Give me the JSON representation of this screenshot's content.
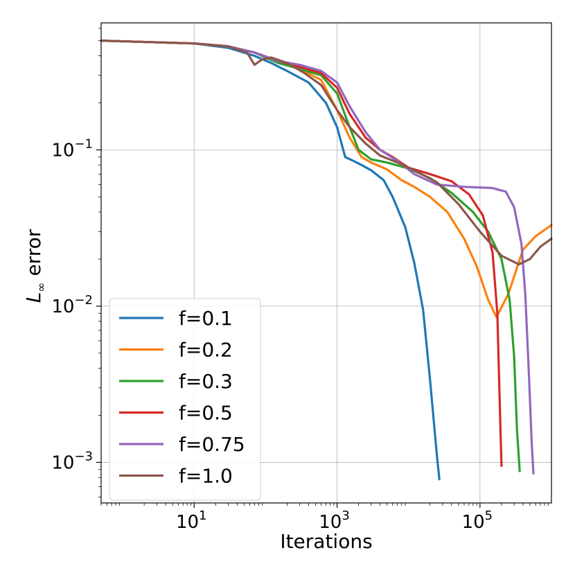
{
  "chart_data": {
    "type": "line",
    "title": "",
    "xlabel": "Iterations",
    "ylabel_main": "L",
    "ylabel_sub": "∞",
    "ylabel_rest": " error",
    "xscale": "log",
    "yscale": "log",
    "xlim": [
      0.5,
      1000000
    ],
    "ylim": [
      0.00055,
      0.65
    ],
    "grid": true,
    "legend_position": "lower-left",
    "x_ticks": [
      {
        "value": 10,
        "base": "10",
        "exp": "1"
      },
      {
        "value": 1000,
        "base": "10",
        "exp": "3"
      },
      {
        "value": 100000,
        "base": "10",
        "exp": "5"
      }
    ],
    "y_ticks": [
      {
        "value": 0.1,
        "base": "10",
        "exp": "−1"
      },
      {
        "value": 0.01,
        "base": "10",
        "exp": "−2"
      },
      {
        "value": 0.001,
        "base": "10",
        "exp": "−3"
      }
    ],
    "series": [
      {
        "name": "f=0.1",
        "color": "#1f77b4",
        "x": [
          0.5,
          10,
          30,
          70,
          120,
          200,
          400,
          700,
          1000,
          1300,
          1700,
          2200,
          3000,
          4500,
          6000,
          9000,
          12000,
          16000,
          20000,
          25000,
          27000
        ],
        "y": [
          0.5,
          0.48,
          0.45,
          0.4,
          0.36,
          0.32,
          0.27,
          0.2,
          0.14,
          0.09,
          0.085,
          0.08,
          0.074,
          0.064,
          0.05,
          0.032,
          0.019,
          0.0095,
          0.0034,
          0.0011,
          0.00078
        ]
      },
      {
        "name": "f=0.2",
        "color": "#ff7f0e",
        "x": [
          0.5,
          10,
          30,
          70,
          150,
          300,
          600,
          1000,
          1500,
          2200,
          3000,
          5000,
          8000,
          12000,
          20000,
          35000,
          60000,
          90000,
          130000,
          170000,
          250000,
          400000,
          600000,
          1000000
        ],
        "y": [
          0.5,
          0.48,
          0.46,
          0.42,
          0.37,
          0.33,
          0.28,
          0.18,
          0.12,
          0.09,
          0.083,
          0.075,
          0.064,
          0.058,
          0.05,
          0.04,
          0.027,
          0.018,
          0.011,
          0.0085,
          0.012,
          0.023,
          0.028,
          0.033
        ]
      },
      {
        "name": "f=0.3",
        "color": "#2ca02c",
        "x": [
          0.5,
          10,
          30,
          70,
          150,
          300,
          600,
          1000,
          1500,
          2000,
          3000,
          5000,
          10000,
          20000,
          40000,
          80000,
          130000,
          200000,
          260000,
          300000,
          330000,
          360000
        ],
        "y": [
          0.5,
          0.48,
          0.46,
          0.42,
          0.36,
          0.33,
          0.3,
          0.23,
          0.14,
          0.1,
          0.087,
          0.083,
          0.076,
          0.066,
          0.053,
          0.04,
          0.03,
          0.02,
          0.011,
          0.0048,
          0.0016,
          0.00088
        ]
      },
      {
        "name": "f=0.5",
        "color": "#d62728",
        "x": [
          0.5,
          10,
          30,
          70,
          150,
          300,
          600,
          1000,
          1500,
          2500,
          4000,
          6000,
          10000,
          20000,
          40000,
          70000,
          110000,
          150000,
          175000,
          190000,
          200000
        ],
        "y": [
          0.5,
          0.48,
          0.46,
          0.42,
          0.37,
          0.34,
          0.31,
          0.25,
          0.17,
          0.12,
          0.1,
          0.09,
          0.077,
          0.07,
          0.063,
          0.052,
          0.038,
          0.022,
          0.009,
          0.0022,
          0.00095
        ]
      },
      {
        "name": "f=0.75",
        "color": "#9467bd",
        "x": [
          0.5,
          10,
          30,
          70,
          150,
          300,
          600,
          1000,
          1500,
          2500,
          4000,
          7000,
          12000,
          25000,
          60000,
          150000,
          230000,
          300000,
          380000,
          430000,
          480000,
          530000,
          560000
        ],
        "y": [
          0.5,
          0.48,
          0.46,
          0.42,
          0.37,
          0.35,
          0.32,
          0.27,
          0.19,
          0.13,
          0.1,
          0.085,
          0.07,
          0.06,
          0.058,
          0.057,
          0.054,
          0.043,
          0.025,
          0.012,
          0.004,
          0.0013,
          0.00085
        ]
      },
      {
        "name": "f=1.0",
        "color": "#8c564b",
        "x": [
          0.5,
          10,
          30,
          55,
          70,
          90,
          120,
          200,
          350,
          600,
          1000,
          1500,
          2500,
          4000,
          7000,
          12000,
          25000,
          50000,
          100000,
          200000,
          350000,
          500000,
          700000,
          1000000
        ],
        "y": [
          0.5,
          0.48,
          0.46,
          0.42,
          0.35,
          0.38,
          0.39,
          0.36,
          0.31,
          0.26,
          0.18,
          0.14,
          0.11,
          0.092,
          0.083,
          0.074,
          0.062,
          0.045,
          0.03,
          0.021,
          0.0185,
          0.02,
          0.024,
          0.027
        ]
      }
    ]
  }
}
